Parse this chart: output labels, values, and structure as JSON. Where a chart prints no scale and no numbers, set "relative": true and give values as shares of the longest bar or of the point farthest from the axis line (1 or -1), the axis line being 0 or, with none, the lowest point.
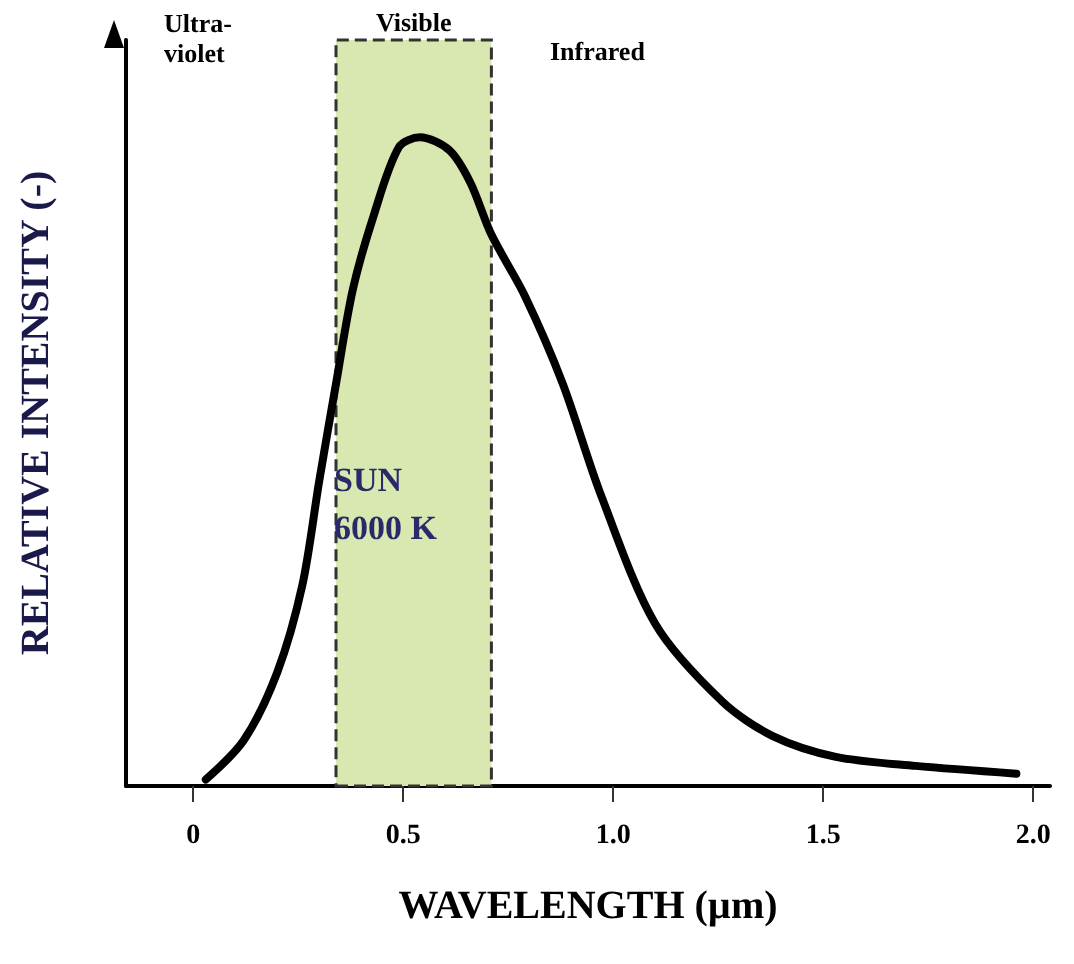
{
  "chart_data": {
    "type": "line",
    "relative": true,
    "xlabel": "WAVELENGTH (µm)",
    "ylabel": "RELATIVE INTENSITY (-)",
    "x": [
      0.03,
      0.12,
      0.2,
      0.26,
      0.3,
      0.34,
      0.38,
      0.43,
      0.49,
      0.54,
      0.61,
      0.66,
      0.71,
      0.79,
      0.88,
      0.97,
      1.1,
      1.26,
      1.38,
      1.53,
      1.72,
      1.96
    ],
    "series": [
      {
        "color": "#000000",
        "values": [
          0.01,
          0.07,
          0.175,
          0.31,
          0.47,
          0.62,
          0.765,
          0.88,
          0.985,
          1.0,
          0.98,
          0.93,
          0.85,
          0.755,
          0.62,
          0.45,
          0.25,
          0.13,
          0.077,
          0.045,
          0.031,
          0.019
        ]
      }
    ],
    "xlim": [
      -0.16,
      2.04
    ],
    "xticks": [
      0,
      0.5,
      {
        "value": 1,
        "label": "1.0"
      },
      1.5,
      {
        "value": 2,
        "label": "2.0"
      }
    ],
    "bands": [
      {
        "axis": "x",
        "from": 0.34,
        "to": 0.71,
        "label": "Visible",
        "color": "#d8e8b0"
      }
    ],
    "annotations": [
      "Ultra-violet",
      "Infrared",
      "SUN 6000 K"
    ],
    "grid": false,
    "marker": "none",
    "line_style": "solid"
  }
}
